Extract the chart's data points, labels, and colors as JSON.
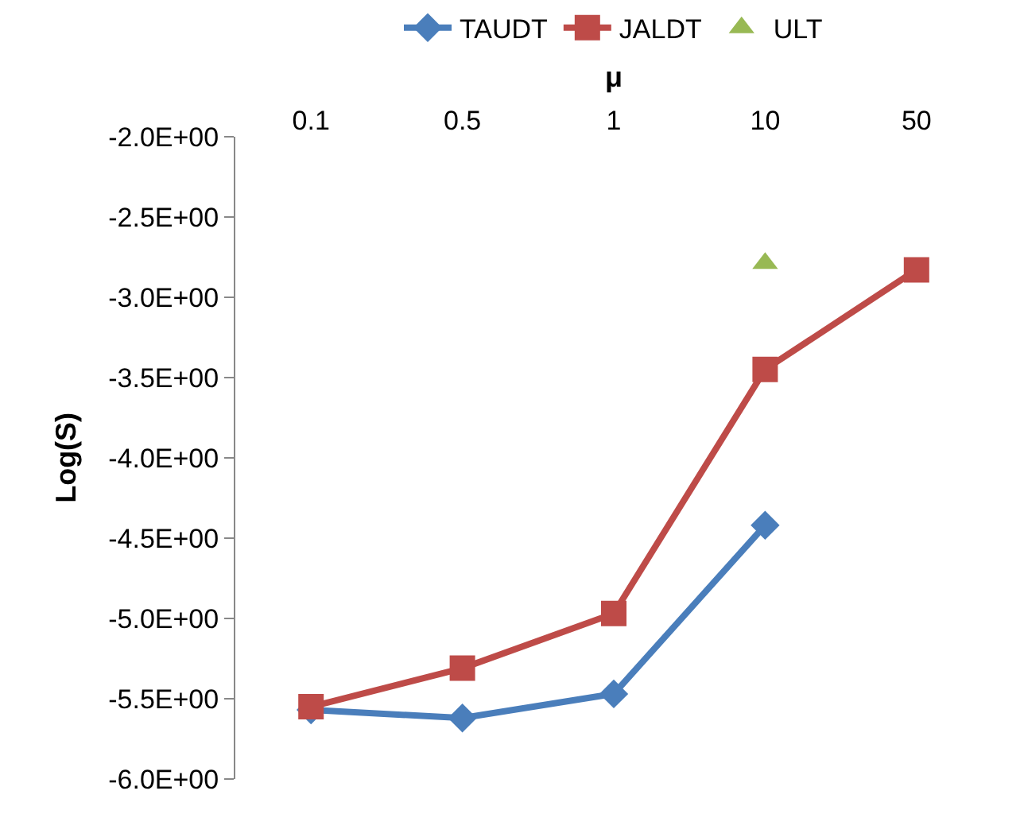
{
  "chart_data": {
    "type": "line",
    "xlabel": "μ",
    "ylabel": "Log(S)",
    "categories": [
      "0.1",
      "0.5",
      "1",
      "10",
      "50"
    ],
    "series": [
      {
        "name": "TAUDT",
        "color": "#4a7ebb",
        "marker": "diamond",
        "values": [
          -5.57,
          -5.62,
          -5.47,
          -4.42,
          null
        ]
      },
      {
        "name": "JALDT",
        "color": "#be4b48",
        "marker": "square",
        "values": [
          -5.55,
          -5.31,
          -4.97,
          -3.45,
          -2.83
        ]
      },
      {
        "name": "ULT",
        "color": "#98b954",
        "marker": "triangle",
        "type": "scatter",
        "values": [
          null,
          null,
          null,
          -2.79,
          null
        ]
      }
    ],
    "ylim": [
      -6,
      -2
    ],
    "yticks": [
      {
        "value": -6,
        "label": "-6.0E+00"
      },
      {
        "value": -5.5,
        "label": "-5.5E+00"
      },
      {
        "value": -5,
        "label": "-5.0E+00"
      },
      {
        "value": -4.5,
        "label": "-4.5E+00"
      },
      {
        "value": -4,
        "label": "-4.0E+00"
      },
      {
        "value": -3.5,
        "label": "-3.5E+00"
      },
      {
        "value": -3,
        "label": "-3.0E+00"
      },
      {
        "value": -2.5,
        "label": "-2.5E+00"
      },
      {
        "value": -2,
        "label": "-2.0E+00"
      }
    ],
    "legend": "top",
    "line_style": "solid"
  }
}
